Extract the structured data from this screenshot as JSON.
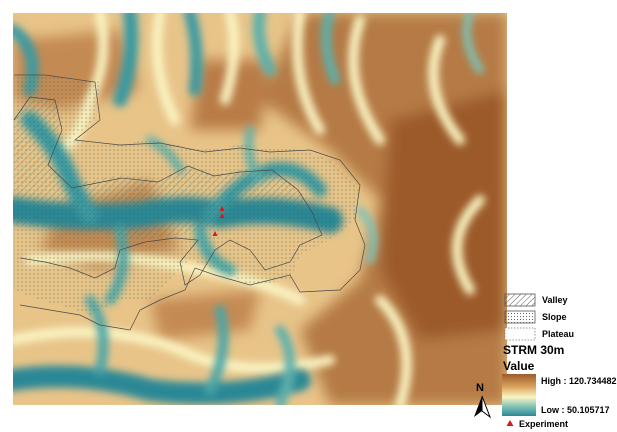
{
  "legend": {
    "zones": [
      {
        "label": "Valley",
        "pattern": "hatch"
      },
      {
        "label": "Slope",
        "pattern": "dots"
      },
      {
        "label": "Plateau",
        "pattern": "blank"
      }
    ],
    "title": "STRM 30m",
    "value_heading": "Value",
    "high_label": "High : 120.734482",
    "low_label": "Low : 50.105717",
    "high_value": 120.734482,
    "low_value": 50.105717,
    "experiment_label": "Experiment",
    "north_letter": "N"
  },
  "colors": {
    "ramp_high": "#9c5a2c",
    "ramp_mid_high": "#d9a35c",
    "ramp_mid": "#fbf5c4",
    "ramp_mid_low": "#7fc2b6",
    "ramp_low": "#2a8896",
    "experiment": "#d7191c",
    "boundary": "#4a4a4a"
  }
}
